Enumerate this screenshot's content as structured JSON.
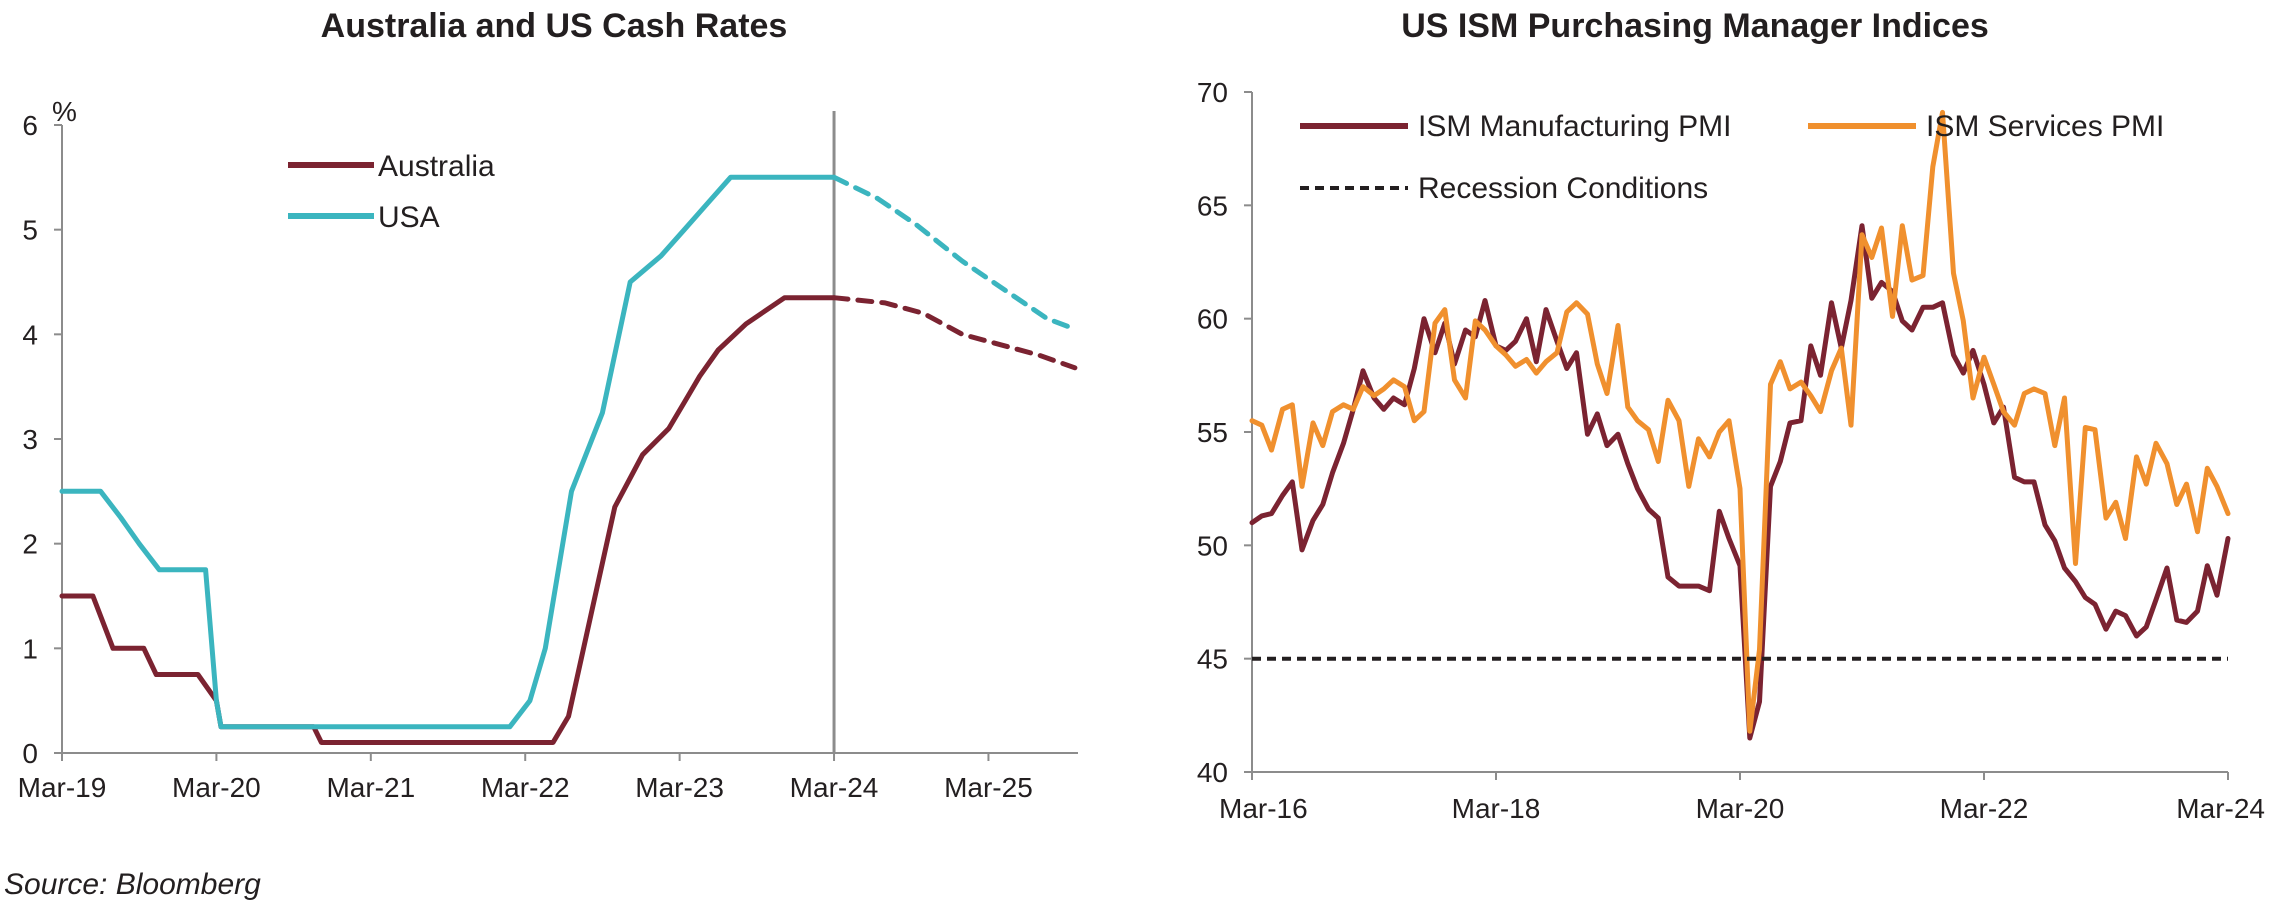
{
  "source_text": "Source: Bloomberg",
  "chart_data": [
    {
      "type": "line",
      "title": "Australia and US Cash Rates",
      "ylabel": "%",
      "xlabel": "",
      "ylim": [
        0,
        6
      ],
      "yticks": [
        0,
        1,
        2,
        3,
        4,
        5,
        6
      ],
      "x_tick_labels": [
        "Mar-19",
        "Mar-20",
        "Mar-21",
        "Mar-22",
        "Mar-23",
        "Mar-24",
        "Mar-25"
      ],
      "x_tick_values": [
        2019.17,
        2020.17,
        2021.17,
        2022.17,
        2023.17,
        2024.17,
        2025.17
      ],
      "xlim": [
        2019.17,
        2025.75
      ],
      "vertical_marker_x": 2024.17,
      "grid": false,
      "legend_placement": "top-center",
      "colors": {
        "Australia": "#7b2331",
        "USA": "#3bb5bf"
      },
      "series": [
        {
          "name": "Australia",
          "segments": [
            {
              "style": "actual",
              "x": [
                2019.17,
                2019.37,
                2019.5,
                2019.7,
                2019.78,
                2020.05,
                2020.17,
                2020.2,
                2020.8,
                2020.85,
                2022.35,
                2022.45,
                2022.75,
                2022.93,
                2023.1,
                2023.2,
                2023.3,
                2023.42,
                2023.6,
                2023.85,
                2024.17
              ],
              "y": [
                1.5,
                1.5,
                1.0,
                1.0,
                0.75,
                0.75,
                0.5,
                0.25,
                0.25,
                0.1,
                0.1,
                0.35,
                2.35,
                2.85,
                3.1,
                3.35,
                3.6,
                3.85,
                4.1,
                4.35,
                4.35
              ]
            },
            {
              "style": "forecast",
              "x": [
                2024.17,
                2024.5,
                2024.75,
                2025.0,
                2025.25,
                2025.5,
                2025.73
              ],
              "y": [
                4.35,
                4.3,
                4.2,
                4.0,
                3.9,
                3.8,
                3.68
              ]
            }
          ]
        },
        {
          "name": "USA",
          "segments": [
            {
              "style": "actual",
              "x": [
                2019.17,
                2019.42,
                2019.55,
                2019.67,
                2019.8,
                2020.1,
                2020.17,
                2020.2,
                2022.07,
                2022.2,
                2022.3,
                2022.47,
                2022.67,
                2022.85,
                2023.05,
                2023.2,
                2023.35,
                2023.5,
                2024.17
              ],
              "y": [
                2.5,
                2.5,
                2.25,
                2.0,
                1.75,
                1.75,
                0.5,
                0.25,
                0.25,
                0.5,
                1.0,
                2.5,
                3.25,
                4.5,
                4.75,
                5.0,
                5.25,
                5.5,
                5.5
              ]
            },
            {
              "style": "forecast",
              "x": [
                2024.17,
                2024.45,
                2024.7,
                2025.0,
                2025.3,
                2025.55,
                2025.73
              ],
              "y": [
                5.5,
                5.3,
                5.05,
                4.7,
                4.4,
                4.15,
                4.05
              ]
            }
          ]
        }
      ]
    },
    {
      "type": "line",
      "title": "US ISM Purchasing Manager Indices",
      "xlabel": "",
      "ylabel": "",
      "ylim": [
        40,
        70
      ],
      "yticks": [
        40,
        45,
        50,
        55,
        60,
        65,
        70
      ],
      "x_tick_labels": [
        "Mar-16",
        "Mar-18",
        "Mar-20",
        "Mar-22",
        "Mar-24"
      ],
      "x_tick_values": [
        2016.17,
        2018.17,
        2020.17,
        2022.17,
        2024.17
      ],
      "xlim": [
        2016.17,
        2024.17
      ],
      "grid": false,
      "legend_placement": "top",
      "colors": {
        "ISM Manufacturing PMI": "#7b2331",
        "ISM Services PMI": "#f0902e",
        "Recession Conditions": "#231f20"
      },
      "series": [
        {
          "name": "ISM Manufacturing PMI",
          "x": [
            2016.17,
            2016.25,
            2016.33,
            2016.42,
            2016.5,
            2016.58,
            2016.67,
            2016.75,
            2016.83,
            2016.92,
            2017.0,
            2017.08,
            2017.17,
            2017.25,
            2017.33,
            2017.42,
            2017.5,
            2017.58,
            2017.67,
            2017.75,
            2017.83,
            2017.92,
            2018.0,
            2018.08,
            2018.17,
            2018.25,
            2018.33,
            2018.42,
            2018.5,
            2018.58,
            2018.67,
            2018.75,
            2018.83,
            2018.92,
            2019.0,
            2019.08,
            2019.17,
            2019.25,
            2019.33,
            2019.42,
            2019.5,
            2019.58,
            2019.67,
            2019.75,
            2019.83,
            2019.92,
            2020.0,
            2020.08,
            2020.17,
            2020.25,
            2020.33,
            2020.42,
            2020.5,
            2020.58,
            2020.67,
            2020.75,
            2020.83,
            2020.92,
            2021.0,
            2021.08,
            2021.17,
            2021.25,
            2021.33,
            2021.42,
            2021.5,
            2021.58,
            2021.67,
            2021.75,
            2021.83,
            2021.92,
            2022.0,
            2022.08,
            2022.17,
            2022.25,
            2022.33,
            2022.42,
            2022.5,
            2022.58,
            2022.67,
            2022.75,
            2022.83,
            2022.92,
            2023.0,
            2023.08,
            2023.17,
            2023.25,
            2023.33,
            2023.42,
            2023.5,
            2023.58,
            2023.67,
            2023.75,
            2023.83,
            2023.92,
            2024.0,
            2024.08,
            2024.17
          ],
          "y": [
            51.0,
            51.3,
            51.4,
            52.2,
            52.8,
            49.8,
            51.1,
            51.8,
            53.2,
            54.5,
            56.0,
            57.7,
            56.5,
            56.0,
            56.5,
            56.2,
            57.8,
            60.0,
            58.5,
            59.8,
            58.0,
            59.5,
            59.2,
            60.8,
            58.8,
            58.6,
            59.0,
            60.0,
            58.1,
            60.4,
            59.0,
            57.8,
            58.5,
            54.9,
            55.8,
            54.4,
            54.9,
            53.6,
            52.5,
            51.6,
            51.2,
            48.6,
            48.2,
            48.2,
            48.2,
            48.0,
            51.5,
            50.3,
            49.1,
            41.5,
            43.1,
            52.6,
            53.7,
            55.4,
            55.5,
            58.8,
            57.5,
            60.7,
            58.7,
            60.8,
            64.1,
            60.9,
            61.6,
            61.2,
            59.9,
            59.5,
            60.5,
            60.5,
            60.7,
            58.4,
            57.6,
            58.6,
            57.1,
            55.4,
            56.1,
            53.0,
            52.8,
            52.8,
            50.9,
            50.2,
            49.0,
            48.4,
            47.7,
            47.4,
            46.3,
            47.1,
            46.9,
            46.0,
            46.4,
            47.6,
            49.0,
            46.7,
            46.6,
            47.1,
            49.1,
            47.8,
            50.3
          ]
        },
        {
          "name": "ISM Services PMI",
          "x": [
            2016.17,
            2016.25,
            2016.33,
            2016.42,
            2016.5,
            2016.58,
            2016.67,
            2016.75,
            2016.83,
            2016.92,
            2017.0,
            2017.08,
            2017.17,
            2017.25,
            2017.33,
            2017.42,
            2017.5,
            2017.58,
            2017.67,
            2017.75,
            2017.83,
            2017.92,
            2018.0,
            2018.08,
            2018.17,
            2018.25,
            2018.33,
            2018.42,
            2018.5,
            2018.58,
            2018.67,
            2018.75,
            2018.83,
            2018.92,
            2019.0,
            2019.08,
            2019.17,
            2019.25,
            2019.33,
            2019.42,
            2019.5,
            2019.58,
            2019.67,
            2019.75,
            2019.83,
            2019.92,
            2020.0,
            2020.08,
            2020.17,
            2020.25,
            2020.33,
            2020.42,
            2020.5,
            2020.58,
            2020.67,
            2020.75,
            2020.83,
            2020.92,
            2021.0,
            2021.08,
            2021.17,
            2021.25,
            2021.33,
            2021.42,
            2021.5,
            2021.58,
            2021.67,
            2021.75,
            2021.83,
            2021.92,
            2022.0,
            2022.08,
            2022.17,
            2022.25,
            2022.33,
            2022.42,
            2022.5,
            2022.58,
            2022.67,
            2022.75,
            2022.83,
            2022.92,
            2023.0,
            2023.08,
            2023.17,
            2023.25,
            2023.33,
            2023.42,
            2023.5,
            2023.58,
            2023.67,
            2023.75,
            2023.83,
            2023.92,
            2024.0,
            2024.08,
            2024.17
          ],
          "y": [
            55.5,
            55.3,
            54.2,
            56.0,
            56.2,
            52.6,
            55.4,
            54.4,
            55.9,
            56.2,
            56.0,
            57.0,
            56.6,
            56.9,
            57.3,
            57.0,
            55.5,
            55.9,
            59.8,
            60.4,
            57.3,
            56.5,
            59.9,
            59.5,
            58.8,
            58.4,
            57.9,
            58.2,
            57.6,
            58.1,
            58.5,
            60.3,
            60.7,
            60.2,
            58.0,
            56.7,
            59.7,
            56.1,
            55.5,
            55.1,
            53.7,
            56.4,
            55.5,
            52.6,
            54.7,
            53.9,
            55.0,
            55.5,
            52.5,
            41.8,
            45.4,
            57.1,
            58.1,
            56.9,
            57.2,
            56.6,
            55.9,
            57.7,
            58.7,
            55.3,
            63.7,
            62.7,
            64.0,
            60.1,
            64.1,
            61.7,
            61.9,
            66.7,
            69.1,
            62.0,
            59.9,
            56.5,
            58.3,
            57.1,
            55.9,
            55.3,
            56.7,
            56.9,
            56.7,
            54.4,
            56.5,
            49.2,
            55.2,
            55.1,
            51.2,
            51.9,
            50.3,
            53.9,
            52.7,
            54.5,
            53.6,
            51.8,
            52.7,
            50.6,
            53.4,
            52.6,
            51.4
          ]
        },
        {
          "name": "Recession Conditions",
          "x": [
            2016.17,
            2024.17
          ],
          "y": [
            45,
            45
          ]
        }
      ]
    }
  ]
}
